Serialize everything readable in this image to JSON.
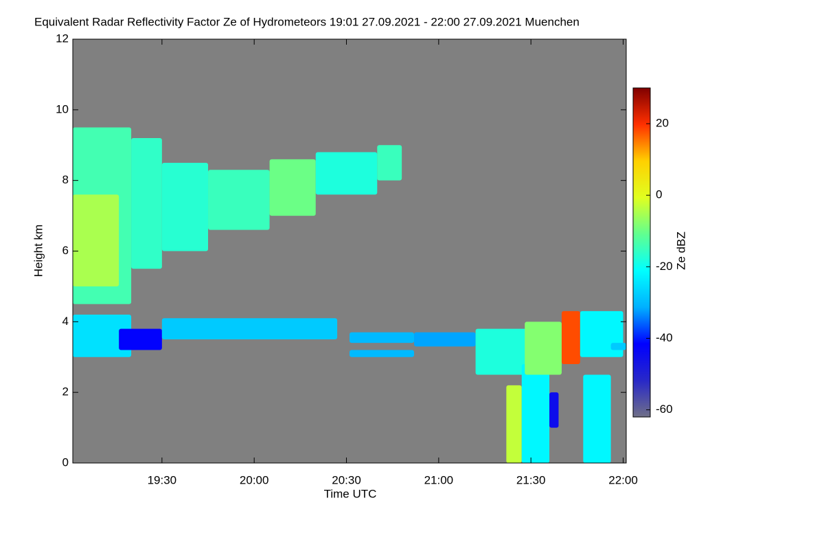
{
  "chart_data": {
    "type": "heatmap",
    "title": "Equivalent Radar Reflectivity Factor Ze of Hydrometeors   19:01 27.09.2021 - 22:00 27.09.2021 Muenchen",
    "xlabel": "Time UTC",
    "ylabel": "Height km",
    "colorbar_label": "Ze dBZ",
    "xlim": [
      1141,
      1321
    ],
    "xticks": [
      {
        "value": 1170,
        "label": "19:30"
      },
      {
        "value": 1200,
        "label": "20:00"
      },
      {
        "value": 1230,
        "label": "20:30"
      },
      {
        "value": 1260,
        "label": "21:00"
      },
      {
        "value": 1290,
        "label": "21:30"
      },
      {
        "value": 1320,
        "label": "22:00"
      }
    ],
    "ylim": [
      0,
      12
    ],
    "yticks": [
      0,
      2,
      4,
      6,
      8,
      10,
      12
    ],
    "zlim": [
      -62,
      30
    ],
    "zticks": [
      -60,
      -40,
      -20,
      0,
      20
    ],
    "background": "#808080",
    "colormap": [
      "#707088",
      "#2828c8",
      "#0000ff",
      "#00b0ff",
      "#00ffff",
      "#60ff90",
      "#e0ff20",
      "#ffd000",
      "#ff3000",
      "#800000"
    ],
    "cells": [
      {
        "t0": 1141,
        "t1": 1160,
        "h0": 4.5,
        "h1": 9.5,
        "ze": -14
      },
      {
        "t0": 1141,
        "t1": 1156,
        "h0": 5.0,
        "h1": 7.6,
        "ze": -5
      },
      {
        "t0": 1160,
        "t1": 1170,
        "h0": 5.5,
        "h1": 9.2,
        "ze": -16
      },
      {
        "t0": 1170,
        "t1": 1185,
        "h0": 6.0,
        "h1": 8.5,
        "ze": -17
      },
      {
        "t0": 1185,
        "t1": 1205,
        "h0": 6.6,
        "h1": 8.3,
        "ze": -15
      },
      {
        "t0": 1205,
        "t1": 1220,
        "h0": 7.0,
        "h1": 8.6,
        "ze": -10
      },
      {
        "t0": 1220,
        "t1": 1240,
        "h0": 7.6,
        "h1": 8.8,
        "ze": -18
      },
      {
        "t0": 1240,
        "t1": 1248,
        "h0": 8.0,
        "h1": 9.0,
        "ze": -15
      },
      {
        "t0": 1141,
        "t1": 1160,
        "h0": 3.0,
        "h1": 4.2,
        "ze": -25
      },
      {
        "t0": 1156,
        "t1": 1170,
        "h0": 3.2,
        "h1": 3.8,
        "ze": -42
      },
      {
        "t0": 1170,
        "t1": 1227,
        "h0": 3.5,
        "h1": 4.1,
        "ze": -28
      },
      {
        "t0": 1231,
        "t1": 1252,
        "h0": 3.4,
        "h1": 3.7,
        "ze": -30
      },
      {
        "t0": 1231,
        "t1": 1252,
        "h0": 3.0,
        "h1": 3.2,
        "ze": -30
      },
      {
        "t0": 1252,
        "t1": 1272,
        "h0": 3.3,
        "h1": 3.7,
        "ze": -32
      },
      {
        "t0": 1272,
        "t1": 1290,
        "h0": 2.5,
        "h1": 3.8,
        "ze": -18
      },
      {
        "t0": 1282,
        "t1": 1287,
        "h0": 0,
        "h1": 2.2,
        "ze": -3
      },
      {
        "t0": 1287,
        "t1": 1296,
        "h0": 0,
        "h1": 2.8,
        "ze": -22
      },
      {
        "t0": 1288,
        "t1": 1300,
        "h0": 2.5,
        "h1": 4.0,
        "ze": -8
      },
      {
        "t0": 1300,
        "t1": 1306,
        "h0": 2.8,
        "h1": 4.3,
        "ze": 18
      },
      {
        "t0": 1306,
        "t1": 1320,
        "h0": 3.0,
        "h1": 4.3,
        "ze": -22
      },
      {
        "t0": 1307,
        "t1": 1316,
        "h0": 0,
        "h1": 2.5,
        "ze": -22
      },
      {
        "t0": 1296,
        "t1": 1299,
        "h0": 1.0,
        "h1": 2.0,
        "ze": -45
      },
      {
        "t0": 1316,
        "t1": 1321,
        "h0": 3.2,
        "h1": 3.4,
        "ze": -28
      }
    ]
  }
}
